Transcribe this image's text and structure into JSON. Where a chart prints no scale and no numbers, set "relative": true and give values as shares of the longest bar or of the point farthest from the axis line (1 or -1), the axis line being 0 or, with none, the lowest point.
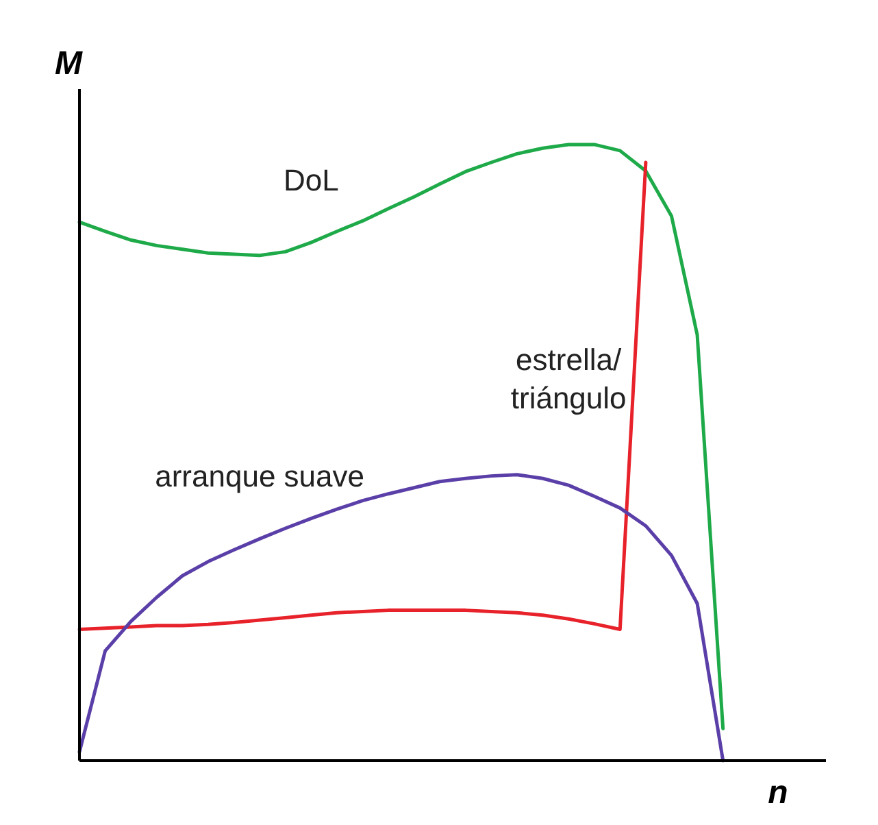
{
  "chart_data": {
    "type": "line",
    "relative": true,
    "xlabel": "n",
    "ylabel": "M",
    "categories": [
      null,
      null,
      null,
      null,
      null,
      null,
      null,
      null,
      null,
      null,
      null,
      null,
      null,
      null,
      null,
      null,
      null,
      null,
      null,
      null,
      null,
      null,
      null,
      null,
      null,
      null
    ],
    "series": [
      {
        "name": "DoL",
        "color": "#1faa4a",
        "values": [
          0.874,
          0.859,
          0.845,
          0.836,
          0.83,
          0.824,
          0.822,
          0.82,
          0.826,
          0.841,
          0.859,
          0.876,
          0.896,
          0.915,
          0.936,
          0.956,
          0.971,
          0.985,
          0.994,
          1.0,
          1.0,
          0.99,
          0.957,
          0.884,
          0.691,
          0.052
        ]
      },
      {
        "name": "estrella/\ntriángulo",
        "color": "#e8222a",
        "values": [
          0.213,
          0.215,
          0.217,
          0.219,
          0.219,
          0.221,
          0.224,
          0.228,
          0.232,
          0.236,
          0.24,
          0.242,
          0.244,
          0.244,
          0.244,
          0.244,
          0.242,
          0.24,
          0.236,
          0.23,
          0.222,
          0.213,
          0.971,
          null,
          null,
          null
        ]
      },
      {
        "name": "arranque suave",
        "color": "#5b3fa8",
        "values": [
          0.014,
          0.178,
          0.226,
          0.265,
          0.3,
          0.323,
          0.342,
          0.36,
          0.377,
          0.393,
          0.408,
          0.422,
          0.433,
          0.443,
          0.453,
          0.458,
          0.462,
          0.464,
          0.458,
          0.447,
          0.429,
          0.41,
          0.381,
          0.333,
          0.255,
          0.0
        ]
      }
    ]
  }
}
